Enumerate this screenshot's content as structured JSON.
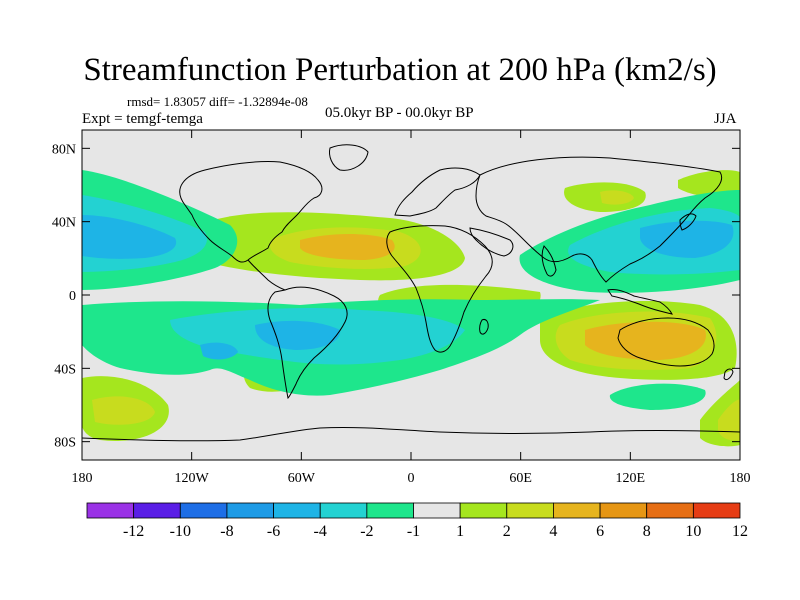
{
  "title": "Streamfunction Perturbation at 200 hPa (km2/s)",
  "stats": "rmsd= 1.83057 diff= -1.32894e-08",
  "experiment": "Expt = temgf-temga",
  "period": "05.0kyr BP - 00.0kyr BP",
  "season": "JJA",
  "axes": {
    "y_ticks": [
      {
        "value": 80,
        "label": "80N"
      },
      {
        "value": 40,
        "label": "40N"
      },
      {
        "value": 0,
        "label": "0"
      },
      {
        "value": -40,
        "label": "40S"
      },
      {
        "value": -80,
        "label": "80S"
      }
    ],
    "x_ticks": [
      {
        "value": -180,
        "label": "180"
      },
      {
        "value": -120,
        "label": "120W"
      },
      {
        "value": -60,
        "label": "60W"
      },
      {
        "value": 0,
        "label": "0"
      },
      {
        "value": 60,
        "label": "60E"
      },
      {
        "value": 120,
        "label": "120E"
      },
      {
        "value": 180,
        "label": "180"
      }
    ],
    "lon_range": [
      -180,
      180
    ],
    "lat_range": [
      -90,
      90
    ]
  },
  "colorbar": {
    "colors": [
      "#9a32e6",
      "#5a1ee6",
      "#1e6ee6",
      "#1e9be6",
      "#1eb4e6",
      "#23d2d2",
      "#1ee68c",
      "#e6e6e6",
      "#a5e61e",
      "#c8dc1e",
      "#e6b41e",
      "#e69614",
      "#e66e14",
      "#e63c14"
    ],
    "labels": [
      "-12",
      "-10",
      "-8",
      "-6",
      "-4",
      "-2",
      "-1",
      "1",
      "2",
      "4",
      "6",
      "8",
      "10",
      "12"
    ]
  },
  "chart_data": {
    "type": "filled_contour_map",
    "variable": "200 hPa streamfunction perturbation (km2/s)",
    "levels": [
      -12,
      -10,
      -8,
      -6,
      -4,
      -2,
      -1,
      1,
      2,
      4,
      6,
      8,
      10,
      12
    ],
    "features": [
      {
        "lon": -110,
        "lat": -53,
        "value": 6,
        "sign": "positive"
      },
      {
        "lon": -75,
        "lat": -40,
        "value": 2,
        "sign": "positive"
      },
      {
        "lon": -35,
        "lat": 25,
        "value": 4,
        "sign": "positive"
      },
      {
        "lon": 25,
        "lat": -30,
        "value": 2,
        "sign": "positive"
      },
      {
        "lon": 120,
        "lat": -22,
        "value": 6,
        "sign": "positive"
      },
      {
        "lon": 175,
        "lat": -55,
        "value": 2,
        "sign": "positive"
      },
      {
        "lon": 60,
        "lat": 45,
        "value": 2,
        "sign": "positive"
      },
      {
        "lon": 165,
        "lat": 50,
        "value": 2,
        "sign": "positive"
      },
      {
        "lon": -150,
        "lat": 25,
        "value": -4,
        "sign": "negative"
      },
      {
        "lon": -100,
        "lat": 35,
        "value": -2,
        "sign": "negative"
      },
      {
        "lon": -60,
        "lat": -20,
        "value": -4,
        "sign": "negative"
      },
      {
        "lon": -20,
        "lat": -25,
        "value": -4,
        "sign": "negative"
      },
      {
        "lon": 135,
        "lat": 25,
        "value": -4,
        "sign": "negative"
      },
      {
        "lon": -150,
        "lat": -30,
        "value": -2,
        "sign": "negative"
      },
      {
        "lon": 120,
        "lat": -50,
        "value": -2,
        "sign": "negative"
      }
    ]
  }
}
